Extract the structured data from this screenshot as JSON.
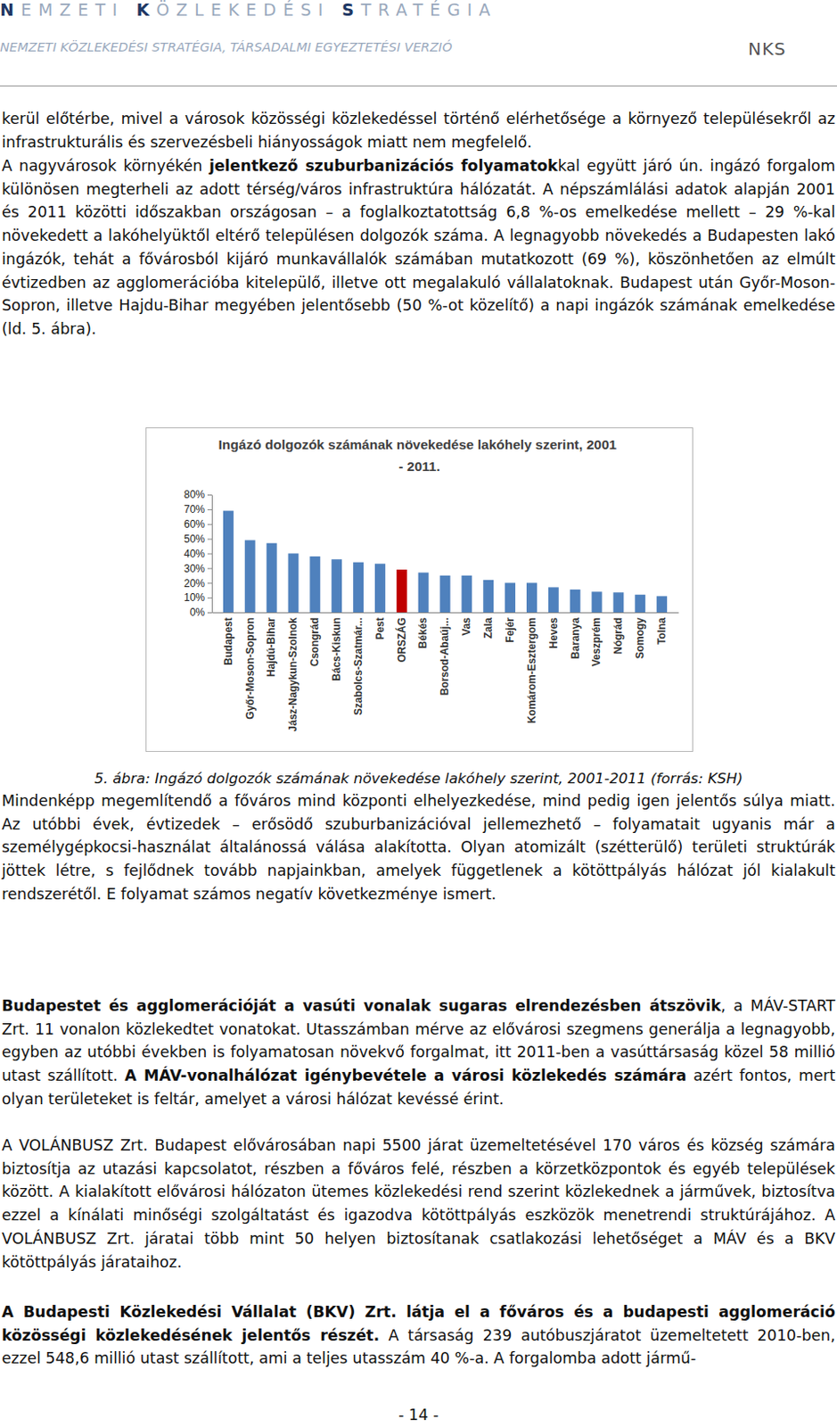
{
  "header": {
    "title": "NEMZETI KÖZLEKEDÉSI STRATÉGIA",
    "subtitle": "NEMZETI KÖZLEKEDÉSI STRATÉGIA, TÁRSADALMI EGYEZTETÉSI VERZIÓ",
    "logo": "NKS"
  },
  "paragraphs": [
    {
      "runs": [
        {
          "text": "kerül előtérbe, mivel a városok közösségi közlekedéssel történő elérhetősége a környező településekről az infrastrukturális és szervezésbeli hiányosságok miatt nem megfelelő.",
          "bold": false
        }
      ]
    },
    {
      "runs": [
        {
          "text": "A nagyvárosok környékén ",
          "bold": false
        },
        {
          "text": "jelentkező szuburbanizációs folyamatok",
          "bold": true
        },
        {
          "text": "kal együtt járó ún. ingázó forgalom különösen megterheli az adott térség/város infrastruktúra hálózatát. A népszámlálási adatok alapján 2001 és 2011 közötti időszakban országosan – a foglalkoztatottság 6,8 %-os emelkedése mellett – 29 %-kal növekedett a lakóhelyüktől eltérő településen dolgozók száma. A legnagyobb növekedés a Budapesten lakó ingázók, tehát a fővárosból kijáró munkavállalók számában mutatkozott (69 %), köszönhetően az elmúlt évtizedben az agglomerációba kitelepülő, illetve ott megalakuló vállalatoknak. Budapest után Győr-Moson-Sopron, illetve Hajdu-Bihar megyében jelentősebb (50 %-ot közelítő) a napi ingázók számának emelkedése (ld. 5. ábra).",
          "bold": false
        }
      ]
    },
    {
      "runs": [
        {
          "text": "Mindenképp megemlítendő a főváros mind központi elhelyezkedése, mind pedig igen jelentős súlya miatt. Az utóbbi évek, évtizedek – erősödő szuburbanizációval jellemezhető – folyamatait ugyanis már a személygépkocsi-használat általánossá válása alakította. Olyan atomizált (szétterülő) területi struktúrák jöttek létre, s fejlődnek tovább napjainkban, amelyek függetlenek a kötöttpályás hálózat jól kialakult rendszerétől. E folyamat számos negatív következménye ismert.",
          "bold": false
        }
      ]
    },
    {
      "runs": [
        {
          "text": "Budapestet és agglomerációját a vasúti vonalak sugaras elrendezésben átszövik",
          "bold": true
        },
        {
          "text": ", a MÁV-START Zrt. 11 vonalon közlekedtet vonatokat. Utasszámban mérve az elővárosi szegmens generálja a legnagyobb, egyben az utóbbi években is folyamatosan növekvő forgalmat, itt 2011-ben a vasúttársaság közel 58 millió utast szállított. ",
          "bold": false
        },
        {
          "text": "A MÁV-vonalhálózat igénybevétele a városi közlekedés számára",
          "bold": true
        },
        {
          "text": " azért fontos, mert olyan területeket is feltár, amelyet a városi hálózat kevéssé érint.",
          "bold": false
        }
      ]
    },
    {
      "runs": [
        {
          "text": "A VOLÁNBUSZ Zrt. Budapest elővárosában napi 5500 járat üzemeltetésével 170 város és község számára biztosítja az utazási kapcsolatot, részben a főváros felé, részben a körzetközpontok és egyéb települések között. A kialakított elővárosi hálózaton ütemes közlekedési rend szerint közlekednek a járművek, biztosítva ezzel a kínálati minőségi szolgáltatást és igazodva kötöttpályás eszközök menetrendi struktúrájához. A VOLÁNBUSZ Zrt. járatai több mint 50 helyen biztosítanak csatlakozási lehetőséget a MÁV és a BKV kötöttpályás járataihoz.",
          "bold": false
        }
      ]
    },
    {
      "runs": [
        {
          "text": "A Budapesti Közlekedési Vállalat (BKV) Zrt. látja el a főváros és a budapesti agglomeráció közösségi közlekedésének jelentős részét.",
          "bold": true
        },
        {
          "text": " A társaság 239 autóbuszjáratot üzemeltetett 2010-ben, ezzel 548,6 millió utast szállított, ami a teljes utasszám 40 %-a. A forgalomba adott jármű-",
          "bold": false
        }
      ]
    }
  ],
  "chart_data": {
    "type": "bar",
    "title": "Ingázó dolgozók számának növekedése lakóhely szerint, 2001 - 2011.",
    "categories": [
      "Budapest",
      "Győr-Moson-Sopron",
      "Hajdú-Bihar",
      "Jász-Nagykun-Szolnok",
      "Csongrád",
      "Bács-Kiskun",
      "Szabolcs-Szatmár...",
      "Pest",
      "ORSZÁG",
      "Békés",
      "Borsod-Abaúj...",
      "Vas",
      "Zala",
      "Fejér",
      "Komárom-Esztergom",
      "Heves",
      "Baranya",
      "Veszprém",
      "Nógrád",
      "Somogy",
      "Tolna"
    ],
    "values": [
      69,
      49,
      47,
      40,
      38,
      36,
      34,
      33,
      29,
      27,
      25,
      25,
      22,
      20,
      20,
      17,
      15.5,
      14,
      13.5,
      12,
      11
    ],
    "colors": [
      "#4f81bd",
      "#4f81bd",
      "#4f81bd",
      "#4f81bd",
      "#4f81bd",
      "#4f81bd",
      "#4f81bd",
      "#4f81bd",
      "#c00000",
      "#4f81bd",
      "#4f81bd",
      "#4f81bd",
      "#4f81bd",
      "#4f81bd",
      "#4f81bd",
      "#4f81bd",
      "#4f81bd",
      "#4f81bd",
      "#4f81bd",
      "#4f81bd",
      "#4f81bd"
    ],
    "ylim": [
      0,
      80
    ],
    "yticks": [
      {
        "value": 0,
        "label": "0%"
      },
      {
        "value": 10,
        "label": "10%"
      },
      {
        "value": 20,
        "label": "20%"
      },
      {
        "value": 30,
        "label": "30%"
      },
      {
        "value": 40,
        "label": "40%"
      },
      {
        "value": 50,
        "label": "50%"
      },
      {
        "value": 60,
        "label": "60%"
      },
      {
        "value": 70,
        "label": "70%"
      },
      {
        "value": 80,
        "label": "80%"
      }
    ],
    "grid": false
  },
  "caption": "5. ábra: Ingázó dolgozók számának növekedése lakóhely szerint, 2001-2011 (forrás: KSH)",
  "page_number": "- 14 -"
}
